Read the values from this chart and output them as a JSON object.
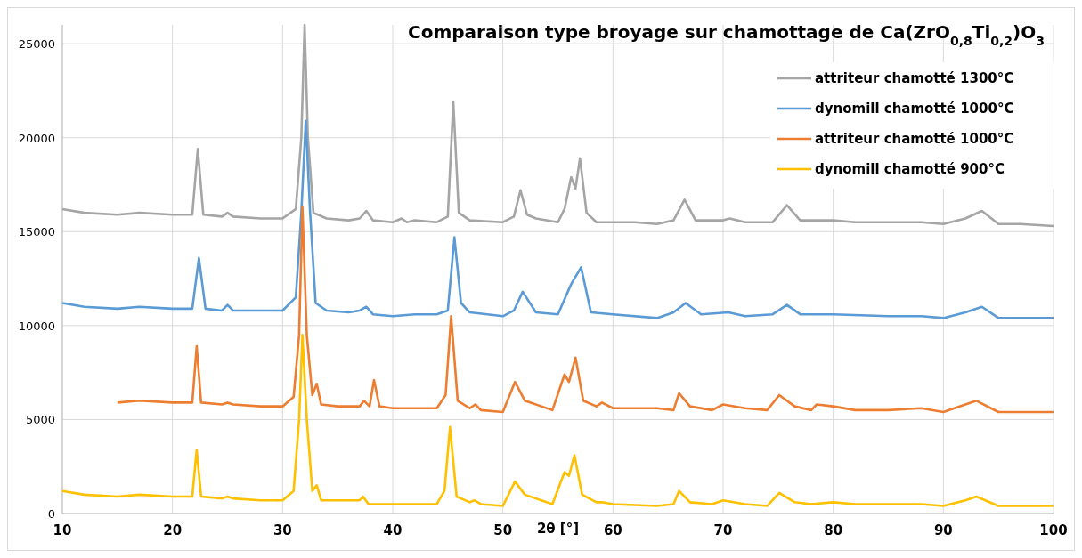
{
  "chart_data": {
    "type": "line",
    "title": "Comparaison  type broyage sur chamottage de Ca(ZrO$_{0,8}$Ti$_{0,2}$)O$_{3}$",
    "xlabel": "2θ [°]",
    "xlim": [
      10,
      100
    ],
    "xticks": [
      10,
      20,
      30,
      40,
      50,
      60,
      70,
      80,
      90,
      100
    ],
    "ylim": [
      0,
      26000
    ],
    "yticks": [
      0,
      5000,
      10000,
      15000,
      20000,
      25000
    ],
    "grid": true,
    "legend": "top right",
    "series": [
      {
        "name": "attriteur chamotté 1300°C",
        "color": "#a5a5a5",
        "x": [
          10,
          12,
          15,
          17,
          20,
          21.8,
          22.3,
          22.8,
          24.5,
          25,
          25.5,
          28,
          30,
          31.2,
          31.7,
          32,
          32.3,
          32.8,
          34,
          36,
          37,
          37.6,
          38.2,
          40,
          40.8,
          41.3,
          42,
          44,
          45,
          45.5,
          46,
          47,
          50,
          51,
          51.6,
          52.2,
          53,
          55,
          55.6,
          56.2,
          56.6,
          57,
          57.6,
          58.5,
          62,
          64,
          65.5,
          66.5,
          67.5,
          70,
          70.6,
          72,
          74.5,
          75.8,
          77,
          80,
          82,
          85,
          88,
          90,
          92,
          93.5,
          95,
          97,
          100
        ],
        "values": [
          16200,
          16000,
          15900,
          16000,
          15900,
          15900,
          19400,
          15900,
          15800,
          16000,
          15800,
          15700,
          15700,
          16200,
          20000,
          26000,
          20000,
          16000,
          15700,
          15600,
          15700,
          16100,
          15600,
          15500,
          15700,
          15500,
          15600,
          15500,
          15800,
          21900,
          16000,
          15600,
          15500,
          15800,
          17200,
          15900,
          15700,
          15500,
          16200,
          17900,
          17300,
          18900,
          16000,
          15500,
          15500,
          15400,
          15600,
          16700,
          15600,
          15600,
          15700,
          15500,
          15500,
          16400,
          15600,
          15600,
          15500,
          15500,
          15500,
          15400,
          15700,
          16100,
          15400,
          15400,
          15300
        ]
      },
      {
        "name": "dynomill chamotté 1000°C",
        "color": "#5b9bd5",
        "x": [
          10,
          12,
          15,
          17,
          20,
          21.8,
          22.4,
          23,
          24.5,
          25,
          25.5,
          28,
          30,
          31.2,
          31.7,
          32.1,
          32.5,
          33,
          34,
          36,
          37,
          37.6,
          38.2,
          40,
          42,
          44,
          45,
          45.6,
          46.2,
          47,
          50,
          51,
          51.8,
          53,
          55,
          56.2,
          57.1,
          58,
          60,
          64,
          65.5,
          66.6,
          68,
          70.5,
          72,
          74.5,
          75.8,
          77,
          80,
          85,
          88,
          90,
          92,
          93.5,
          95,
          97,
          100
        ],
        "values": [
          11200,
          11000,
          10900,
          11000,
          10900,
          10900,
          13600,
          10900,
          10800,
          11100,
          10800,
          10800,
          10800,
          11500,
          16000,
          20900,
          16000,
          11200,
          10800,
          10700,
          10800,
          11000,
          10600,
          10500,
          10600,
          10600,
          10800,
          14700,
          11200,
          10700,
          10500,
          10800,
          11800,
          10700,
          10600,
          12200,
          13100,
          10700,
          10600,
          10400,
          10700,
          11200,
          10600,
          10700,
          10500,
          10600,
          11100,
          10600,
          10600,
          10500,
          10500,
          10400,
          10700,
          11000,
          10400,
          10400,
          10400
        ]
      },
      {
        "name": "attriteur chamotté 1000°C",
        "color": "#ed7d31",
        "x": [
          15,
          17,
          20,
          21.8,
          22.2,
          22.6,
          24.5,
          25,
          25.5,
          28,
          30,
          31,
          31.5,
          31.8,
          32.2,
          32.7,
          33.1,
          33.5,
          35,
          37,
          37.4,
          37.9,
          38.3,
          38.8,
          40,
          42,
          44,
          44.8,
          45.3,
          45.9,
          47,
          47.5,
          48,
          50,
          51.1,
          52,
          54.5,
          55.6,
          56,
          56.6,
          57.3,
          58.5,
          59,
          60,
          64,
          65.5,
          66,
          67,
          69,
          70,
          72,
          74,
          75.1,
          76.5,
          78,
          78.5,
          80,
          82,
          85,
          88,
          90,
          92,
          93,
          95,
          97,
          100
        ],
        "values": [
          5900,
          6000,
          5900,
          5900,
          8900,
          5900,
          5800,
          5900,
          5800,
          5700,
          5700,
          6200,
          9500,
          16300,
          9500,
          6300,
          6900,
          5800,
          5700,
          5700,
          6000,
          5700,
          7100,
          5700,
          5600,
          5600,
          5600,
          6300,
          10500,
          6000,
          5600,
          5800,
          5500,
          5400,
          7000,
          6000,
          5500,
          7400,
          7000,
          8300,
          6000,
          5700,
          5900,
          5600,
          5600,
          5500,
          6400,
          5700,
          5500,
          5800,
          5600,
          5500,
          6300,
          5700,
          5500,
          5800,
          5700,
          5500,
          5500,
          5600,
          5400,
          5800,
          6000,
          5400,
          5400,
          5400
        ]
      },
      {
        "name": "dynomill chamotté 900°C",
        "color": "#ffc000",
        "x": [
          10,
          12,
          15,
          17,
          20,
          21.8,
          22.2,
          22.6,
          24.5,
          25,
          25.5,
          28,
          30,
          31,
          31.5,
          31.8,
          32.2,
          32.7,
          33.1,
          33.5,
          35,
          37,
          37.3,
          37.8,
          40,
          42,
          44,
          44.7,
          45.2,
          45.8,
          47,
          47.4,
          48,
          50,
          51.1,
          52,
          54.5,
          55.6,
          56,
          56.5,
          57.2,
          58.5,
          59,
          60,
          64,
          65.5,
          66,
          67,
          69,
          70,
          72,
          74,
          75.1,
          76.5,
          78,
          80,
          82,
          85,
          88,
          90,
          92,
          93,
          95,
          97,
          100
        ],
        "values": [
          1200,
          1000,
          900,
          1000,
          900,
          900,
          3400,
          900,
          800,
          900,
          800,
          700,
          700,
          1200,
          5000,
          9500,
          5000,
          1200,
          1500,
          700,
          700,
          700,
          900,
          500,
          500,
          500,
          500,
          1200,
          4600,
          900,
          600,
          700,
          500,
          400,
          1700,
          1000,
          500,
          2200,
          2000,
          3100,
          1000,
          600,
          600,
          500,
          400,
          500,
          1200,
          600,
          500,
          700,
          500,
          400,
          1100,
          600,
          500,
          600,
          500,
          500,
          500,
          400,
          700,
          900,
          400,
          400,
          400
        ]
      }
    ]
  }
}
